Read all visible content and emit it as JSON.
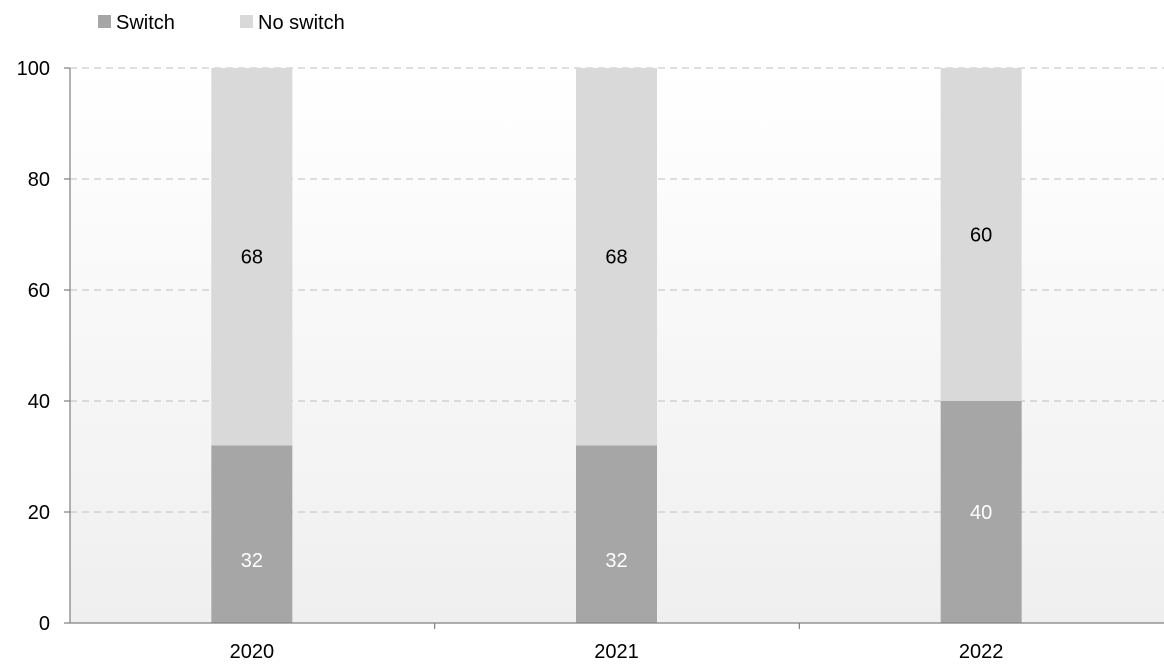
{
  "chart_data": {
    "type": "bar",
    "stacked": true,
    "categories": [
      "2020",
      "2021",
      "2022"
    ],
    "series": [
      {
        "name": "Switch",
        "values": [
          32,
          32,
          40
        ],
        "color": "#a6a6a6",
        "label_color": "#ffffff"
      },
      {
        "name": "No switch",
        "values": [
          68,
          68,
          60
        ],
        "color": "#d9d9d9",
        "label_color": "#000000"
      }
    ],
    "ylim": [
      0,
      100
    ],
    "yticks": [
      0,
      20,
      40,
      60,
      80,
      100
    ],
    "grid": true,
    "legend_position": "top-left",
    "title": "",
    "xlabel": "",
    "ylabel": ""
  }
}
